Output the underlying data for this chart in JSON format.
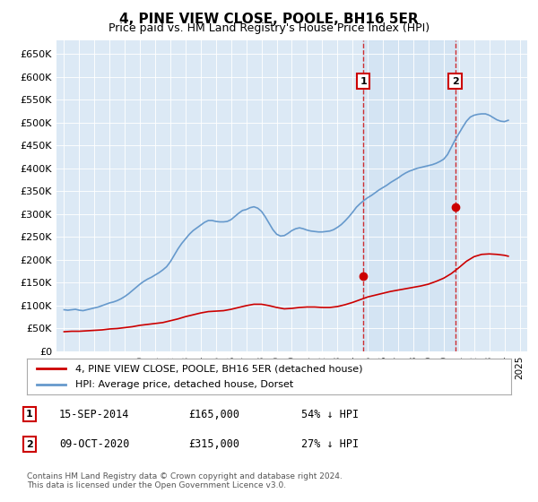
{
  "title": "4, PINE VIEW CLOSE, POOLE, BH16 5ER",
  "subtitle": "Price paid vs. HM Land Registry's House Price Index (HPI)",
  "xlabel": "",
  "ylabel": "",
  "ylim": [
    0,
    680000
  ],
  "yticks": [
    0,
    50000,
    100000,
    150000,
    200000,
    250000,
    300000,
    350000,
    400000,
    450000,
    500000,
    550000,
    600000,
    650000
  ],
  "ytick_labels": [
    "£0",
    "£50K",
    "£100K",
    "£150K",
    "£200K",
    "£250K",
    "£300K",
    "£350K",
    "£400K",
    "£450K",
    "£500K",
    "£550K",
    "£600K",
    "£650K"
  ],
  "background_color": "#dce9f5",
  "plot_bg_color": "#dce9f5",
  "line1_color": "#cc0000",
  "line2_color": "#6699cc",
  "line1_label": "4, PINE VIEW CLOSE, POOLE, BH16 5ER (detached house)",
  "line2_label": "HPI: Average price, detached house, Dorset",
  "transaction1_date": "15-SEP-2014",
  "transaction1_price": 165000,
  "transaction1_pct": "54% ↓ HPI",
  "transaction2_date": "09-OCT-2020",
  "transaction2_price": 315000,
  "transaction2_pct": "27% ↓ HPI",
  "footer": "Contains HM Land Registry data © Crown copyright and database right 2024.\nThis data is licensed under the Open Government Licence v3.0.",
  "hpi_years": [
    1995,
    1995.25,
    1995.5,
    1995.75,
    1996,
    1996.25,
    1996.5,
    1996.75,
    1997,
    1997.25,
    1997.5,
    1997.75,
    1998,
    1998.25,
    1998.5,
    1998.75,
    1999,
    1999.25,
    1999.5,
    1999.75,
    2000,
    2000.25,
    2000.5,
    2000.75,
    2001,
    2001.25,
    2001.5,
    2001.75,
    2002,
    2002.25,
    2002.5,
    2002.75,
    2003,
    2003.25,
    2003.5,
    2003.75,
    2004,
    2004.25,
    2004.5,
    2004.75,
    2005,
    2005.25,
    2005.5,
    2005.75,
    2006,
    2006.25,
    2006.5,
    2006.75,
    2007,
    2007.25,
    2007.5,
    2007.75,
    2008,
    2008.25,
    2008.5,
    2008.75,
    2009,
    2009.25,
    2009.5,
    2009.75,
    2010,
    2010.25,
    2010.5,
    2010.75,
    2011,
    2011.25,
    2011.5,
    2011.75,
    2012,
    2012.25,
    2012.5,
    2012.75,
    2013,
    2013.25,
    2013.5,
    2013.75,
    2014,
    2014.25,
    2014.5,
    2014.75,
    2015,
    2015.25,
    2015.5,
    2015.75,
    2016,
    2016.25,
    2016.5,
    2016.75,
    2017,
    2017.25,
    2017.5,
    2017.75,
    2018,
    2018.25,
    2018.5,
    2018.75,
    2019,
    2019.25,
    2019.5,
    2019.75,
    2020,
    2020.25,
    2020.5,
    2020.75,
    2021,
    2021.25,
    2021.5,
    2021.75,
    2022,
    2022.25,
    2022.5,
    2022.75,
    2023,
    2023.25,
    2023.5,
    2023.75,
    2024,
    2024.25
  ],
  "hpi_values": [
    91000,
    90000,
    91000,
    92000,
    90000,
    89000,
    91000,
    93000,
    95000,
    97000,
    100000,
    103000,
    106000,
    108000,
    111000,
    115000,
    120000,
    126000,
    133000,
    140000,
    147000,
    153000,
    158000,
    162000,
    167000,
    172000,
    178000,
    185000,
    196000,
    210000,
    224000,
    236000,
    246000,
    256000,
    264000,
    270000,
    276000,
    282000,
    286000,
    286000,
    284000,
    283000,
    283000,
    284000,
    288000,
    295000,
    302000,
    308000,
    310000,
    314000,
    316000,
    313000,
    306000,
    294000,
    280000,
    266000,
    256000,
    252000,
    253000,
    258000,
    264000,
    268000,
    270000,
    268000,
    265000,
    263000,
    262000,
    261000,
    261000,
    262000,
    263000,
    266000,
    271000,
    277000,
    285000,
    294000,
    304000,
    315000,
    323000,
    330000,
    336000,
    341000,
    347000,
    353000,
    358000,
    363000,
    369000,
    374000,
    379000,
    385000,
    390000,
    394000,
    397000,
    400000,
    402000,
    404000,
    406000,
    408000,
    411000,
    415000,
    420000,
    430000,
    446000,
    462000,
    476000,
    490000,
    503000,
    512000,
    516000,
    518000,
    519000,
    519000,
    516000,
    511000,
    506000,
    503000,
    502000,
    505000
  ],
  "price_years": [
    1995,
    1995.5,
    1996,
    1996.5,
    1997,
    1997.5,
    1998,
    1998.5,
    1999,
    1999.5,
    2000,
    2000.5,
    2001,
    2001.5,
    2002,
    2002.5,
    2003,
    2003.5,
    2004,
    2004.5,
    2005,
    2005.5,
    2006,
    2006.5,
    2007,
    2007.5,
    2008,
    2008.5,
    2009,
    2009.5,
    2010,
    2010.5,
    2011,
    2011.5,
    2012,
    2012.5,
    2013,
    2013.5,
    2014,
    2014.5,
    2015,
    2015.5,
    2016,
    2016.5,
    2017,
    2017.5,
    2018,
    2018.5,
    2019,
    2019.5,
    2020,
    2020.5,
    2021,
    2021.5,
    2022,
    2022.5,
    2023,
    2023.5,
    2024,
    2024.25
  ],
  "price_values": [
    43000,
    44000,
    44000,
    45000,
    46000,
    47000,
    49000,
    50000,
    52000,
    54000,
    57000,
    59000,
    61000,
    63000,
    67000,
    71000,
    76000,
    80000,
    84000,
    87000,
    88000,
    89000,
    92000,
    96000,
    100000,
    103000,
    103000,
    100000,
    96000,
    93000,
    94000,
    96000,
    97000,
    97000,
    96000,
    96000,
    98000,
    102000,
    107000,
    113000,
    119000,
    123000,
    127000,
    131000,
    134000,
    137000,
    140000,
    143000,
    147000,
    153000,
    160000,
    170000,
    183000,
    197000,
    207000,
    212000,
    213000,
    212000,
    210000,
    208000
  ],
  "sale1_x": 2014.7,
  "sale1_y": 165000,
  "sale2_x": 2020.75,
  "sale2_y": 315000,
  "vline1_x": 2014.7,
  "vline2_x": 2020.75,
  "xlim": [
    1994.5,
    2025.5
  ],
  "xticks": [
    1995,
    1996,
    1997,
    1998,
    1999,
    2000,
    2001,
    2002,
    2003,
    2004,
    2005,
    2006,
    2007,
    2008,
    2009,
    2010,
    2011,
    2012,
    2013,
    2014,
    2015,
    2016,
    2017,
    2018,
    2019,
    2020,
    2021,
    2022,
    2023,
    2024,
    2025
  ]
}
